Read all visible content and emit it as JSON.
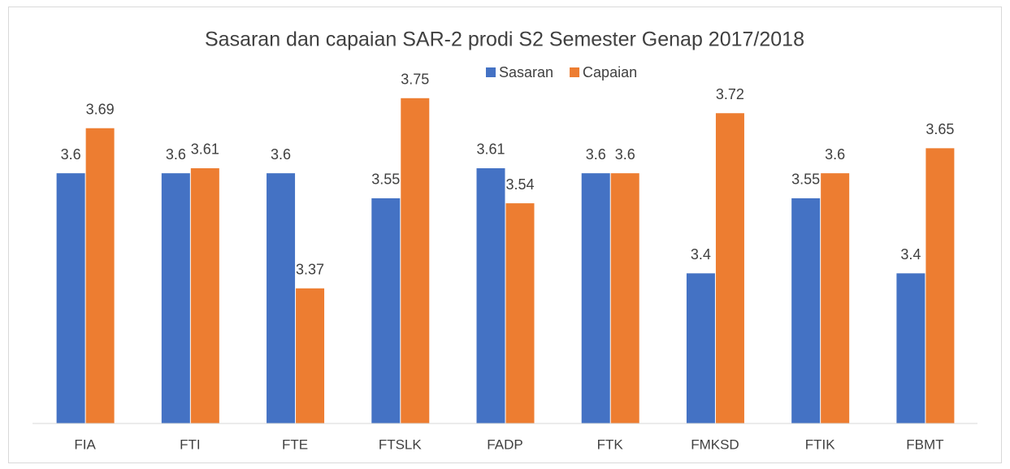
{
  "chart_data": {
    "type": "bar",
    "title": "Sasaran dan capaian SAR-2 prodi S2 Semester Genap 2017/2018",
    "categories": [
      "FIA",
      "FTI",
      "FTE",
      "FTSLK",
      "FADP",
      "FTK",
      "FMKSD",
      "FTIK",
      "FBMT"
    ],
    "series": [
      {
        "name": "Sasaran",
        "color": "#4472c4",
        "values": [
          3.6,
          3.6,
          3.6,
          3.55,
          3.61,
          3.6,
          3.4,
          3.55,
          3.4
        ]
      },
      {
        "name": "Capaian",
        "color": "#ed7d31",
        "values": [
          3.69,
          3.61,
          3.37,
          3.75,
          3.54,
          3.6,
          3.72,
          3.6,
          3.65
        ]
      }
    ],
    "ylim": [
      3.1,
      3.8
    ],
    "grid": false,
    "legend": "top"
  }
}
